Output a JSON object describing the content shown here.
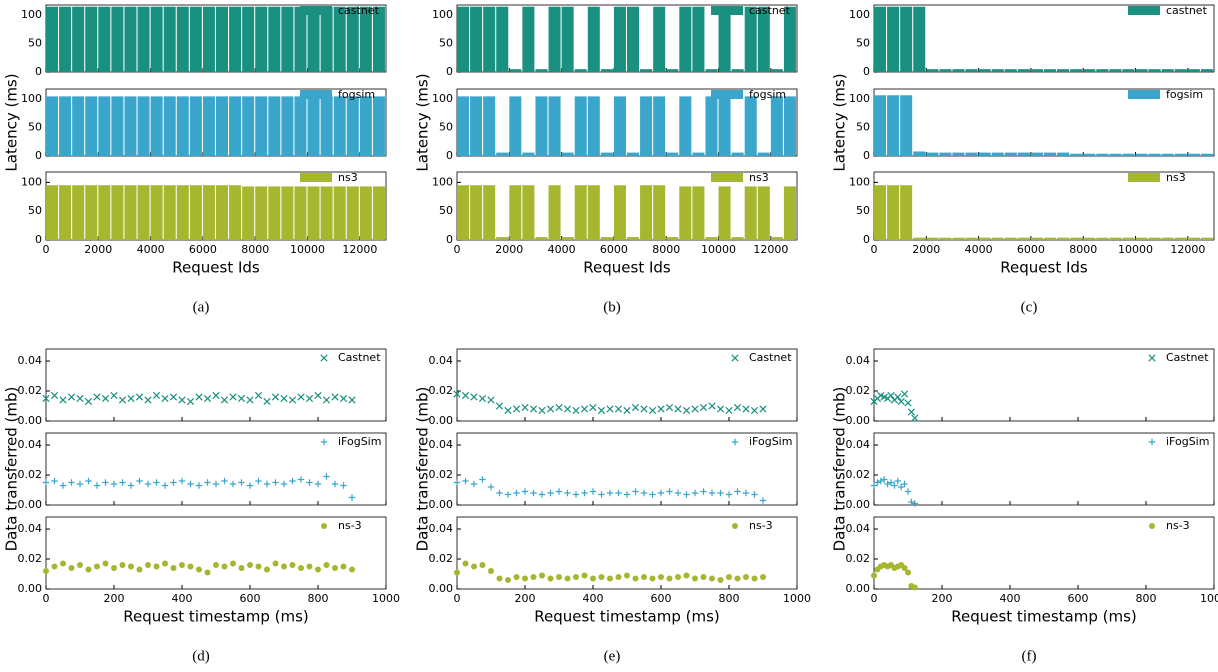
{
  "chart_data": [
    {
      "type": "bar",
      "caption": "(a)",
      "xlabel": "Request Ids",
      "ylabel": "Latency (ms)",
      "x": [
        0,
        500,
        1000,
        1500,
        2000,
        2500,
        3000,
        3500,
        4000,
        4500,
        5000,
        5500,
        6000,
        6500,
        7000,
        7500,
        8000,
        8500,
        9000,
        9500,
        10000,
        10500,
        11000,
        11500,
        12000,
        12500
      ],
      "xlim": [
        0,
        13000
      ],
      "xticks": [
        0,
        2000,
        4000,
        6000,
        8000,
        10000,
        12000
      ],
      "ylim": [
        0,
        118
      ],
      "yticks": [
        0,
        50,
        100
      ],
      "series": [
        {
          "name": "castnet",
          "color": "#1a9080",
          "values": [
            115,
            115,
            115,
            115,
            115,
            115,
            115,
            115,
            115,
            115,
            115,
            115,
            115,
            115,
            115,
            115,
            115,
            115,
            115,
            115,
            115,
            115,
            115,
            115,
            115,
            115
          ]
        },
        {
          "name": "fogsim",
          "color": "#3aa6cc",
          "values": [
            105,
            105,
            105,
            105,
            105,
            105,
            105,
            105,
            105,
            105,
            105,
            105,
            105,
            105,
            105,
            105,
            105,
            105,
            105,
            105,
            105,
            105,
            105,
            105,
            105,
            105
          ]
        },
        {
          "name": "ns3",
          "color": "#a6b62e",
          "values": [
            95,
            95,
            95,
            95,
            95,
            95,
            95,
            95,
            95,
            95,
            95,
            95,
            95,
            95,
            95,
            93,
            93,
            93,
            93,
            93,
            93,
            93,
            93,
            93,
            93,
            93
          ]
        }
      ]
    },
    {
      "type": "bar",
      "caption": "(b)",
      "xlabel": "Request Ids",
      "ylabel": "Latency (ms)",
      "x": [
        0,
        500,
        1000,
        1500,
        2000,
        2500,
        3000,
        3500,
        4000,
        4500,
        5000,
        5500,
        6000,
        6500,
        7000,
        7500,
        8000,
        8500,
        9000,
        9500,
        10000,
        10500,
        11000,
        11500,
        12000,
        12500
      ],
      "xlim": [
        0,
        13000
      ],
      "xticks": [
        0,
        2000,
        4000,
        6000,
        8000,
        10000,
        12000
      ],
      "ylim": [
        0,
        118
      ],
      "yticks": [
        0,
        50,
        100
      ],
      "series": [
        {
          "name": "castnet",
          "color": "#1a9080",
          "values": [
            115,
            115,
            115,
            115,
            5,
            115,
            5,
            115,
            115,
            5,
            115,
            5,
            115,
            115,
            5,
            115,
            5,
            115,
            115,
            5,
            115,
            5,
            115,
            115,
            5,
            115
          ]
        },
        {
          "name": "fogsim",
          "color": "#3aa6cc",
          "values": [
            105,
            105,
            105,
            6,
            105,
            6,
            105,
            105,
            6,
            105,
            105,
            6,
            105,
            6,
            105,
            105,
            6,
            105,
            6,
            105,
            105,
            6,
            105,
            6,
            105,
            105
          ]
        },
        {
          "name": "ns3",
          "color": "#a6b62e",
          "values": [
            95,
            95,
            95,
            5,
            95,
            95,
            5,
            95,
            5,
            95,
            95,
            5,
            95,
            5,
            95,
            95,
            5,
            93,
            93,
            5,
            93,
            5,
            93,
            93,
            5,
            93
          ]
        }
      ]
    },
    {
      "type": "bar",
      "caption": "(c)",
      "xlabel": "Request Ids",
      "ylabel": "Latency (ms)",
      "x": [
        0,
        500,
        1000,
        1500,
        2000,
        2500,
        3000,
        3500,
        4000,
        4500,
        5000,
        5500,
        6000,
        6500,
        7000,
        7500,
        8000,
        8500,
        9000,
        9500,
        10000,
        10500,
        11000,
        11500,
        12000,
        12500
      ],
      "xlim": [
        0,
        13000
      ],
      "xticks": [
        0,
        2000,
        4000,
        6000,
        8000,
        10000,
        12000
      ],
      "ylim": [
        0,
        118
      ],
      "yticks": [
        0,
        50,
        100
      ],
      "series": [
        {
          "name": "castnet",
          "color": "#1a9080",
          "values": [
            115,
            115,
            115,
            115,
            5,
            5,
            5,
            5,
            5,
            5,
            5,
            5,
            5,
            5,
            5,
            5,
            5,
            5,
            5,
            5,
            5,
            5,
            5,
            5,
            5,
            5
          ]
        },
        {
          "name": "fogsim",
          "color": "#3aa6cc",
          "values": [
            107,
            107,
            107,
            8,
            6,
            6,
            6,
            6,
            6,
            6,
            6,
            6,
            6,
            6,
            6,
            4,
            4,
            4,
            4,
            4,
            4,
            4,
            4,
            4,
            4,
            4
          ]
        },
        {
          "name": "ns3",
          "color": "#a6b62e",
          "values": [
            95,
            95,
            95,
            4,
            4,
            4,
            4,
            4,
            4,
            4,
            4,
            4,
            4,
            4,
            4,
            4,
            4,
            4,
            4,
            4,
            4,
            4,
            4,
            4,
            4,
            4
          ]
        }
      ]
    },
    {
      "type": "scatter",
      "caption": "(d)",
      "xlabel": "Request timestamp (ms)",
      "ylabel": "Data transferred (mb)",
      "x": [
        0,
        25,
        50,
        75,
        100,
        125,
        150,
        175,
        200,
        225,
        250,
        275,
        300,
        325,
        350,
        375,
        400,
        425,
        450,
        475,
        500,
        525,
        550,
        575,
        600,
        625,
        650,
        675,
        700,
        725,
        750,
        775,
        800,
        825,
        850,
        875,
        900
      ],
      "xlim": [
        0,
        1000
      ],
      "xticks": [
        0,
        200,
        400,
        600,
        800,
        1000
      ],
      "ylim": [
        0,
        0.048
      ],
      "yticks": [
        {
          "value": 0,
          "label": "0.00"
        },
        {
          "value": 0.02,
          "label": "0.02"
        },
        {
          "value": 0.04,
          "label": "0.04"
        }
      ],
      "series": [
        {
          "name": "Castnet",
          "color": "#1a9080",
          "marker": "x",
          "values": [
            0.015,
            0.017,
            0.014,
            0.016,
            0.015,
            0.013,
            0.016,
            0.015,
            0.017,
            0.014,
            0.015,
            0.016,
            0.014,
            0.017,
            0.015,
            0.016,
            0.014,
            0.013,
            0.016,
            0.015,
            0.017,
            0.014,
            0.016,
            0.015,
            0.014,
            0.017,
            0.013,
            0.016,
            0.015,
            0.014,
            0.016,
            0.015,
            0.017,
            0.014,
            0.016,
            0.015,
            0.014
          ]
        },
        {
          "name": "iFogSim",
          "color": "#3aa6cc",
          "marker": "+",
          "values": [
            0.015,
            0.016,
            0.013,
            0.015,
            0.014,
            0.016,
            0.013,
            0.015,
            0.014,
            0.015,
            0.013,
            0.016,
            0.014,
            0.015,
            0.013,
            0.015,
            0.016,
            0.014,
            0.013,
            0.015,
            0.014,
            0.016,
            0.014,
            0.015,
            0.013,
            0.016,
            0.014,
            0.015,
            0.014,
            0.016,
            0.017,
            0.015,
            0.014,
            0.019,
            0.014,
            0.013,
            0.005
          ]
        },
        {
          "name": "ns-3",
          "color": "#a6b62e",
          "marker": "o",
          "values": [
            0.012,
            0.015,
            0.017,
            0.014,
            0.016,
            0.013,
            0.015,
            0.017,
            0.014,
            0.016,
            0.015,
            0.013,
            0.016,
            0.015,
            0.017,
            0.014,
            0.016,
            0.015,
            0.013,
            0.011,
            0.016,
            0.015,
            0.017,
            0.014,
            0.016,
            0.015,
            0.013,
            0.017,
            0.015,
            0.016,
            0.014,
            0.015,
            0.013,
            0.016,
            0.014,
            0.015,
            0.013
          ]
        }
      ]
    },
    {
      "type": "scatter",
      "caption": "(e)",
      "xlabel": "Request timestamp (ms)",
      "ylabel": "Data transferred (mb)",
      "x": [
        0,
        25,
        50,
        75,
        100,
        125,
        150,
        175,
        200,
        225,
        250,
        275,
        300,
        325,
        350,
        375,
        400,
        425,
        450,
        475,
        500,
        525,
        550,
        575,
        600,
        625,
        650,
        675,
        700,
        725,
        750,
        775,
        800,
        825,
        850,
        875,
        900
      ],
      "xlim": [
        0,
        1000
      ],
      "xticks": [
        0,
        200,
        400,
        600,
        800,
        1000
      ],
      "ylim": [
        0,
        0.048
      ],
      "yticks": [
        {
          "value": 0,
          "label": "0.00"
        },
        {
          "value": 0.02,
          "label": "0.02"
        },
        {
          "value": 0.04,
          "label": "0.04"
        }
      ],
      "series": [
        {
          "name": "Castnet",
          "color": "#1a9080",
          "marker": "x",
          "values": [
            0.018,
            0.017,
            0.016,
            0.015,
            0.014,
            0.01,
            0.007,
            0.008,
            0.009,
            0.008,
            0.007,
            0.008,
            0.009,
            0.008,
            0.007,
            0.008,
            0.009,
            0.007,
            0.008,
            0.008,
            0.007,
            0.009,
            0.008,
            0.007,
            0.008,
            0.009,
            0.008,
            0.007,
            0.008,
            0.009,
            0.01,
            0.008,
            0.007,
            0.009,
            0.008,
            0.007,
            0.008
          ]
        },
        {
          "name": "iFogSim",
          "color": "#3aa6cc",
          "marker": "+",
          "values": [
            0.015,
            0.016,
            0.014,
            0.017,
            0.012,
            0.008,
            0.007,
            0.008,
            0.009,
            0.008,
            0.007,
            0.008,
            0.009,
            0.008,
            0.007,
            0.008,
            0.009,
            0.007,
            0.008,
            0.008,
            0.007,
            0.009,
            0.008,
            0.007,
            0.008,
            0.009,
            0.008,
            0.007,
            0.008,
            0.009,
            0.008,
            0.008,
            0.007,
            0.009,
            0.008,
            0.007,
            0.003
          ]
        },
        {
          "name": "ns-3",
          "color": "#a6b62e",
          "marker": "o",
          "values": [
            0.011,
            0.017,
            0.015,
            0.016,
            0.012,
            0.007,
            0.006,
            0.008,
            0.007,
            0.008,
            0.009,
            0.007,
            0.008,
            0.007,
            0.008,
            0.009,
            0.007,
            0.008,
            0.007,
            0.008,
            0.009,
            0.007,
            0.008,
            0.007,
            0.008,
            0.007,
            0.008,
            0.009,
            0.007,
            0.008,
            0.007,
            0.006,
            0.008,
            0.007,
            0.008,
            0.007,
            0.008
          ]
        }
      ]
    },
    {
      "type": "scatter",
      "caption": "(f)",
      "xlabel": "Request timestamp (ms)",
      "ylabel": "Data transferred (mb)",
      "x": [
        0,
        10,
        20,
        30,
        40,
        50,
        60,
        70,
        80,
        90,
        100,
        110,
        120
      ],
      "xlim": [
        0,
        1000
      ],
      "xticks": [
        0,
        200,
        400,
        600,
        800,
        1000
      ],
      "ylim": [
        0,
        0.048
      ],
      "yticks": [
        {
          "value": 0,
          "label": "0.00"
        },
        {
          "value": 0.02,
          "label": "0.02"
        },
        {
          "value": 0.04,
          "label": "0.04"
        }
      ],
      "series": [
        {
          "name": "Castnet",
          "color": "#1a9080",
          "marker": "x",
          "values": [
            0.013,
            0.015,
            0.017,
            0.016,
            0.015,
            0.017,
            0.014,
            0.016,
            0.013,
            0.018,
            0.012,
            0.006,
            0.002
          ]
        },
        {
          "name": "iFogSim",
          "color": "#3aa6cc",
          "marker": "+",
          "values": [
            0.013,
            0.015,
            0.016,
            0.017,
            0.014,
            0.015,
            0.013,
            0.016,
            0.012,
            0.014,
            0.009,
            0.002,
            0.001
          ]
        },
        {
          "name": "ns-3",
          "color": "#a6b62e",
          "marker": "o",
          "values": [
            0.009,
            0.013,
            0.015,
            0.016,
            0.015,
            0.016,
            0.014,
            0.015,
            0.016,
            0.014,
            0.011,
            0.002,
            0.001
          ]
        }
      ]
    }
  ]
}
